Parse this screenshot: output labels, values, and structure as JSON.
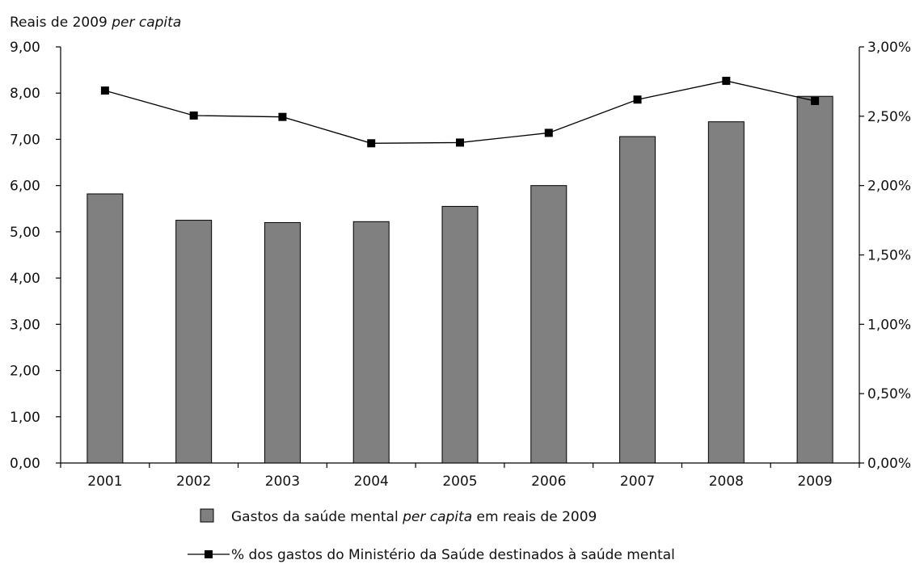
{
  "chart_data": {
    "type": "bar",
    "title": "",
    "ylabel_prefix": "Reais de 2009",
    "ylabel_italic": "per capita",
    "categories": [
      "2001",
      "2002",
      "2003",
      "2004",
      "2005",
      "2006",
      "2007",
      "2008",
      "2009"
    ],
    "series": [
      {
        "name": "Gastos da saúde mental per capita em reais de 2009",
        "axis": "left",
        "type": "bar",
        "color": "#808080",
        "values": [
          5.82,
          5.25,
          5.2,
          5.22,
          5.55,
          6.0,
          7.06,
          7.38,
          7.93
        ]
      },
      {
        "name": "% dos gastos do Ministério da Saúde destinados à saúde mental",
        "axis": "right",
        "type": "line",
        "color": "#000000",
        "values": [
          2.685,
          2.505,
          2.495,
          2.305,
          2.31,
          2.38,
          2.62,
          2.755,
          2.61
        ]
      }
    ],
    "ylim": [
      0,
      9
    ],
    "y2lim": [
      0,
      3
    ],
    "yticks": [
      "0,00",
      "1,00",
      "2,00",
      "3,00",
      "4,00",
      "5,00",
      "6,00",
      "7,00",
      "8,00",
      "9,00"
    ],
    "y2ticks": [
      "0,00%",
      "0,50%",
      "1,00%",
      "1,50%",
      "2,00%",
      "2,50%",
      "3,00%"
    ],
    "grid": false,
    "legend": {
      "placement": "bottom",
      "bar_label_pre": "Gastos da saúde mental",
      "bar_label_italic": "per capita",
      "bar_label_post": "em reais de 2009",
      "line_label": "% dos gastos do Ministério da Saúde destinados à saúde mental"
    }
  }
}
